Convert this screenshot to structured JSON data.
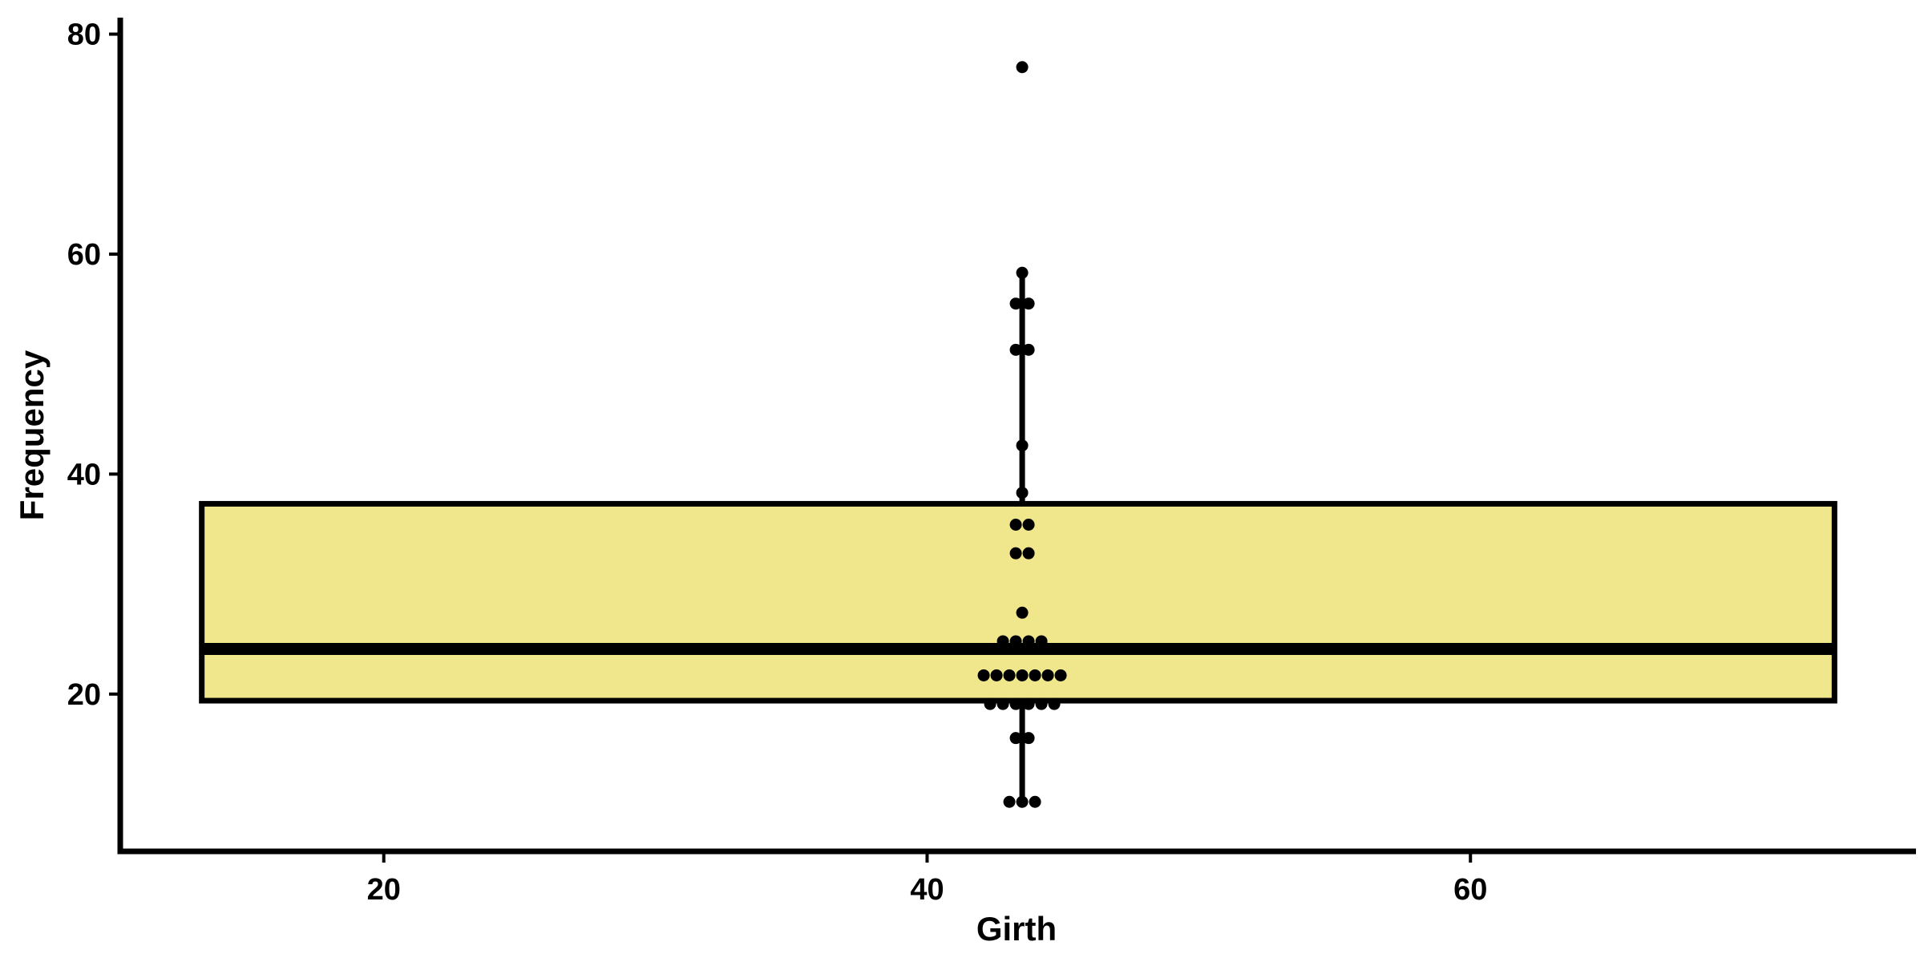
{
  "chart_data": {
    "type": "boxplot",
    "title": "",
    "xlabel": "Girth",
    "ylabel": "Frequency",
    "xlim": [
      10.3,
      76.4
    ],
    "ylim": [
      5.7,
      81.5
    ],
    "x_ticks": [
      20,
      40,
      60
    ],
    "y_ticks": [
      20,
      40,
      60,
      80
    ],
    "box": {
      "x_min": 13.3,
      "x_max": 73.4,
      "q1": 19.4,
      "median": 24.1,
      "q3": 37.3,
      "whisker_low": 10.2,
      "whisker_high": 58.3,
      "whisker_x": 43.5,
      "fill_color": "#F0E68C"
    },
    "points": [
      {
        "x": 43.5,
        "y": 77.0
      },
      {
        "x": 43.5,
        "y": 58.3
      },
      {
        "x": 43.5,
        "y": 55.5
      },
      {
        "x": 43.5,
        "y": 55.5
      },
      {
        "x": 43.5,
        "y": 51.3
      },
      {
        "x": 43.5,
        "y": 51.3
      },
      {
        "x": 43.5,
        "y": 42.6
      },
      {
        "x": 43.5,
        "y": 38.3
      },
      {
        "x": 43.5,
        "y": 35.4
      },
      {
        "x": 43.5,
        "y": 35.4
      },
      {
        "x": 43.5,
        "y": 32.8
      },
      {
        "x": 43.5,
        "y": 32.8
      },
      {
        "x": 43.5,
        "y": 27.4
      },
      {
        "x": 43.5,
        "y": 24.8
      },
      {
        "x": 43.5,
        "y": 24.8
      },
      {
        "x": 43.5,
        "y": 24.8
      },
      {
        "x": 43.5,
        "y": 24.8
      },
      {
        "x": 43.5,
        "y": 21.7
      },
      {
        "x": 43.5,
        "y": 21.7
      },
      {
        "x": 43.5,
        "y": 21.7
      },
      {
        "x": 43.5,
        "y": 21.7
      },
      {
        "x": 43.5,
        "y": 21.7
      },
      {
        "x": 43.5,
        "y": 21.7
      },
      {
        "x": 43.5,
        "y": 21.7
      },
      {
        "x": 43.5,
        "y": 19.1
      },
      {
        "x": 43.5,
        "y": 19.1
      },
      {
        "x": 43.5,
        "y": 19.1
      },
      {
        "x": 43.5,
        "y": 19.1
      },
      {
        "x": 43.5,
        "y": 19.1
      },
      {
        "x": 43.5,
        "y": 19.1
      },
      {
        "x": 43.5,
        "y": 16.0
      },
      {
        "x": 43.5,
        "y": 16.0
      },
      {
        "x": 43.5,
        "y": 10.2
      },
      {
        "x": 43.5,
        "y": 10.2
      },
      {
        "x": 43.5,
        "y": 10.2
      }
    ],
    "point_color": "#000000",
    "grid": false,
    "legend": "none"
  }
}
